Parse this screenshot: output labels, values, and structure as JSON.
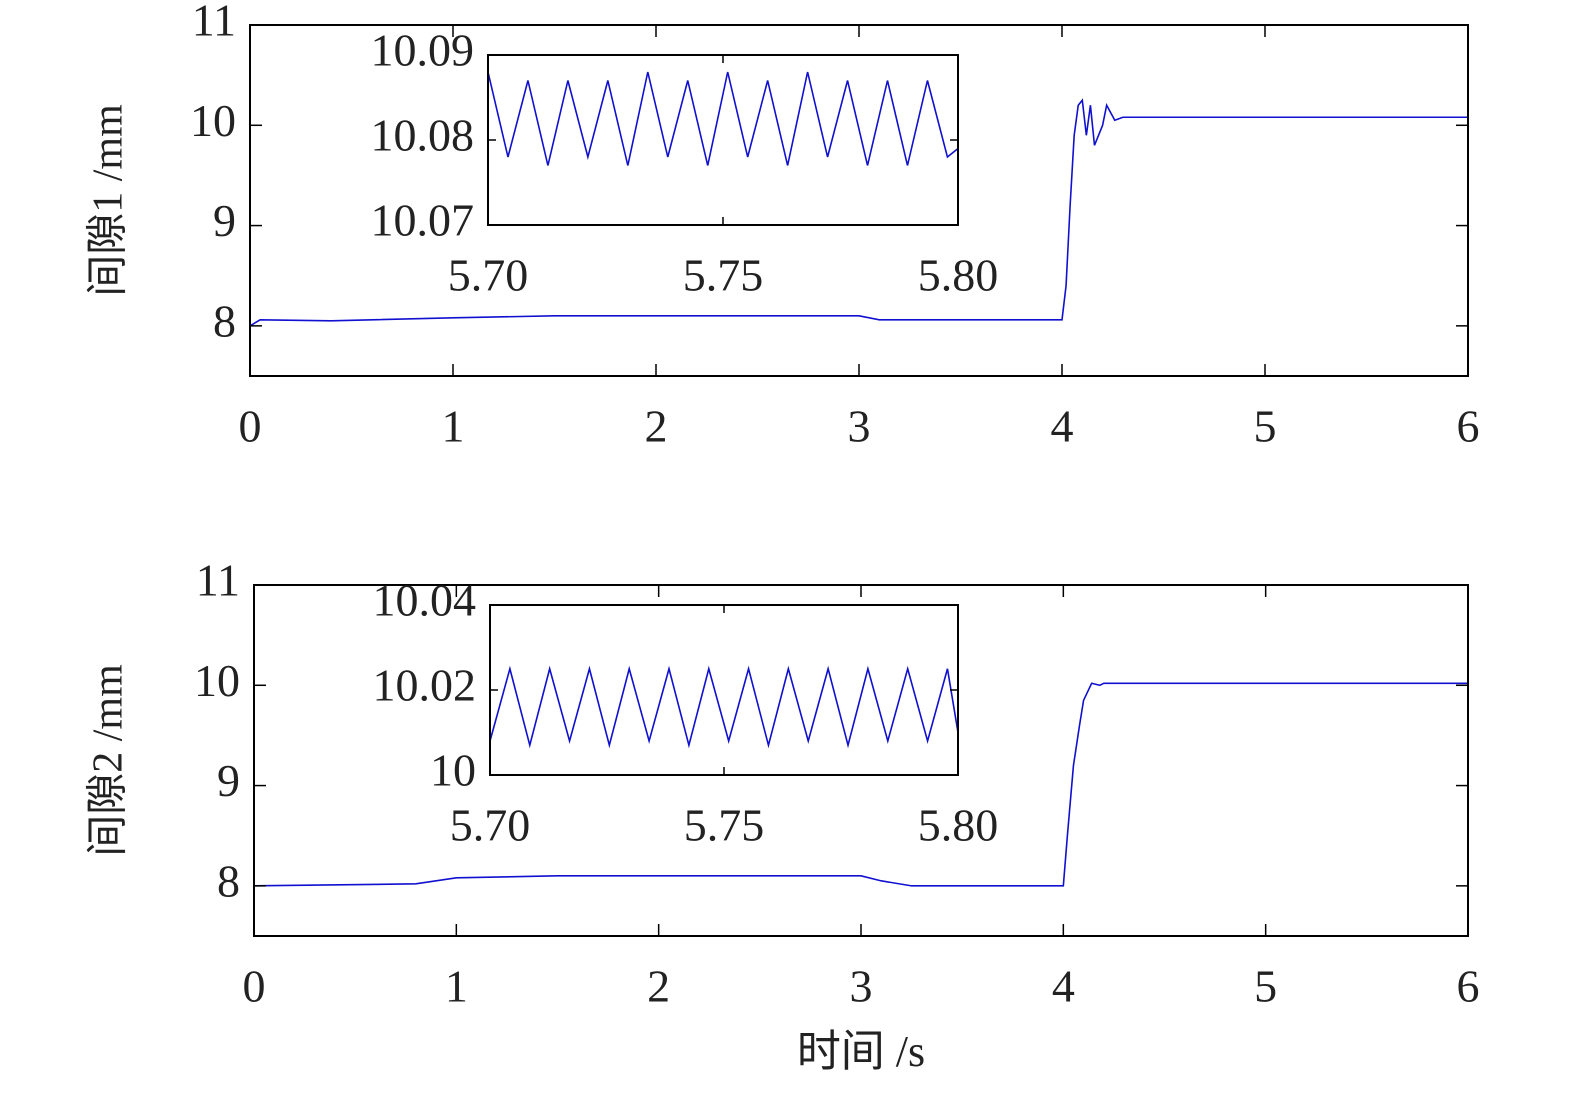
{
  "chart_data": [
    {
      "type": "line",
      "ylabel": "间隙1 /mm",
      "x": [
        0,
        0.05,
        0.4,
        1.0,
        1.5,
        3.0,
        3.1,
        4.0,
        4.02,
        4.04,
        4.06,
        4.08,
        4.1,
        4.12,
        4.14,
        4.16,
        4.2,
        4.22,
        4.26,
        4.3,
        6
      ],
      "series": [
        {
          "color": "#1010d0",
          "values": [
            8.0,
            8.06,
            8.05,
            8.08,
            8.1,
            8.1,
            8.06,
            8.06,
            8.4,
            9.2,
            9.9,
            10.2,
            10.25,
            9.9,
            10.2,
            9.8,
            10.0,
            10.2,
            10.05,
            10.08,
            10.08
          ]
        }
      ],
      "xlim": [
        0,
        6
      ],
      "ylim": [
        7.5,
        11
      ],
      "xticks": [
        0,
        1,
        2,
        3,
        4,
        5,
        6
      ],
      "yticks": [
        8,
        9,
        10,
        11
      ],
      "grid": false
    },
    {
      "type": "line",
      "x": [
        5.7,
        5.70425,
        5.7085,
        5.71275,
        5.717,
        5.72125,
        5.7255,
        5.72975,
        5.734,
        5.73825,
        5.7425,
        5.74675,
        5.751,
        5.75525,
        5.7595,
        5.76375,
        5.768,
        5.77225,
        5.7765,
        5.78075,
        5.785,
        5.78925,
        5.7935,
        5.79775,
        5.8
      ],
      "series": [
        {
          "color": "#1010d0",
          "values": [
            10.088,
            10.078,
            10.087,
            10.077,
            10.087,
            10.078,
            10.087,
            10.077,
            10.088,
            10.078,
            10.087,
            10.077,
            10.088,
            10.078,
            10.087,
            10.077,
            10.088,
            10.078,
            10.087,
            10.077,
            10.087,
            10.077,
            10.087,
            10.078,
            10.079
          ]
        }
      ],
      "xlim": [
        5.7,
        5.8
      ],
      "ylim": [
        10.07,
        10.09
      ],
      "xticks": [
        {
          "value": 5.7,
          "label": "5.70"
        },
        {
          "value": 5.75,
          "label": "5.75"
        },
        {
          "value": 5.8,
          "label": "5.80"
        }
      ],
      "yticks": [
        10.07,
        10.08,
        10.09
      ],
      "grid": false
    },
    {
      "type": "line",
      "ylabel": "间隙2 /mm",
      "xlabel": "时间 /s",
      "x": [
        0,
        0.8,
        1.0,
        1.5,
        3.0,
        3.1,
        3.25,
        4.0,
        4.02,
        4.05,
        4.08,
        4.1,
        4.14,
        4.18,
        4.2,
        6
      ],
      "series": [
        {
          "color": "#1010d0",
          "values": [
            8.0,
            8.02,
            8.08,
            8.1,
            8.1,
            8.05,
            8.0,
            8.0,
            8.5,
            9.2,
            9.6,
            9.85,
            10.02,
            10.0,
            10.02,
            10.02
          ]
        }
      ],
      "xlim": [
        0,
        6
      ],
      "ylim": [
        7.5,
        11
      ],
      "xticks": [
        0,
        1,
        2,
        3,
        4,
        5,
        6
      ],
      "yticks": [
        8,
        9,
        10,
        11
      ],
      "grid": false
    },
    {
      "type": "line",
      "x": [
        5.7,
        5.70425,
        5.7085,
        5.71275,
        5.717,
        5.72125,
        5.7255,
        5.72975,
        5.734,
        5.73825,
        5.7425,
        5.74675,
        5.751,
        5.75525,
        5.7595,
        5.76375,
        5.768,
        5.77225,
        5.7765,
        5.78075,
        5.785,
        5.78925,
        5.7935,
        5.79775,
        5.8
      ],
      "series": [
        {
          "color": "#1010d0",
          "values": [
            10.008,
            10.025,
            10.007,
            10.025,
            10.008,
            10.025,
            10.007,
            10.025,
            10.008,
            10.025,
            10.007,
            10.025,
            10.008,
            10.025,
            10.007,
            10.025,
            10.008,
            10.025,
            10.007,
            10.025,
            10.008,
            10.025,
            10.008,
            10.025,
            10.01
          ]
        }
      ],
      "xlim": [
        5.7,
        5.8
      ],
      "ylim": [
        10,
        10.04
      ],
      "xticks": [
        {
          "value": 5.7,
          "label": "5.70"
        },
        {
          "value": 5.75,
          "label": "5.75"
        },
        {
          "value": 5.8,
          "label": "5.80"
        }
      ],
      "yticks": [
        10,
        10.02,
        10.04
      ],
      "grid": false
    }
  ]
}
